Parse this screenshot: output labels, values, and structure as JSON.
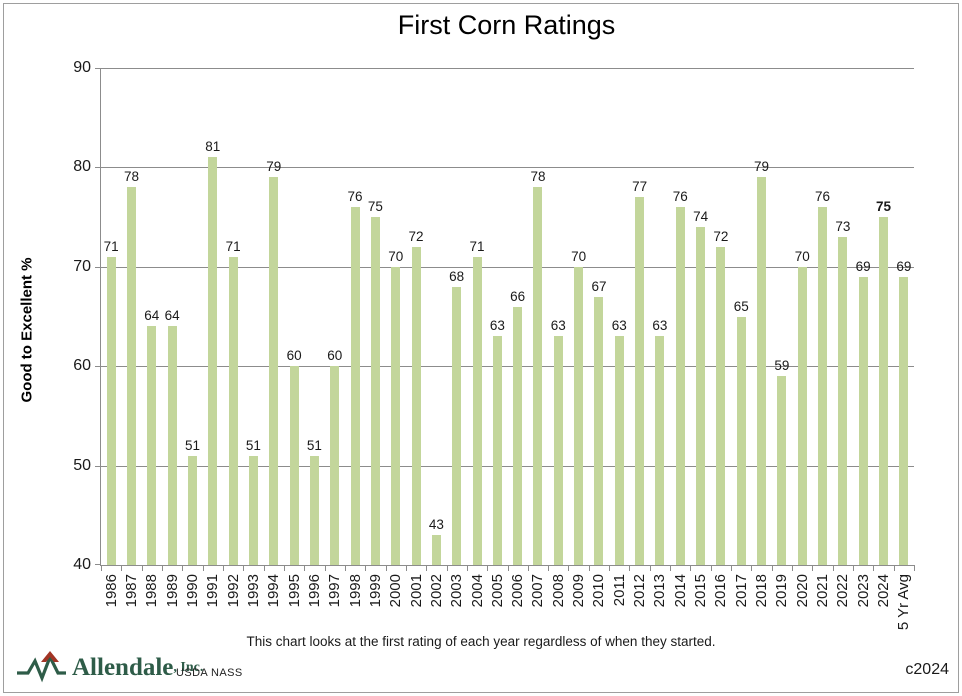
{
  "title": "First Corn Ratings",
  "y_axis_label": "Good to Excellent %",
  "caption": "This chart looks at the first rating of each year regardless of when they started.",
  "footer": {
    "brand": "Allendale",
    "brand_suffix": ", Inc.",
    "source": "USDA NASS",
    "copyright_label": "c2024",
    "logo_icon": "allendale-zigzag-logo",
    "brand_color": "#2e5c48",
    "logo_accent_color": "#a23425"
  },
  "chart_data": {
    "type": "bar",
    "title": "First Corn Ratings",
    "xlabel": "",
    "ylabel": "Good to Excellent %",
    "ylim": [
      40,
      90
    ],
    "yticks": [
      40,
      50,
      60,
      70,
      80,
      90
    ],
    "grid": true,
    "legend": false,
    "bar_color": "#c3d69b",
    "grid_color": "#8c8c8c",
    "text_color": "#1a1a1a",
    "categories": [
      "1986",
      "1987",
      "1988",
      "1989",
      "1990",
      "1991",
      "1992",
      "1993",
      "1994",
      "1995",
      "1996",
      "1997",
      "1998",
      "1999",
      "2000",
      "2001",
      "2002",
      "2003",
      "2004",
      "2005",
      "2006",
      "2007",
      "2008",
      "2009",
      "2010",
      "2011",
      "2012",
      "2013",
      "2014",
      "2015",
      "2016",
      "2017",
      "2018",
      "2019",
      "2020",
      "2021",
      "2022",
      "2023",
      "2024",
      "5 Yr Avg"
    ],
    "values": [
      71,
      78,
      64,
      64,
      51,
      81,
      71,
      51,
      79,
      60,
      51,
      60,
      76,
      75,
      70,
      72,
      43,
      68,
      71,
      63,
      66,
      78,
      63,
      70,
      67,
      63,
      77,
      63,
      76,
      74,
      72,
      65,
      79,
      59,
      70,
      76,
      73,
      69,
      75,
      69
    ],
    "bold_value_label_categories": [
      "2024"
    ]
  }
}
